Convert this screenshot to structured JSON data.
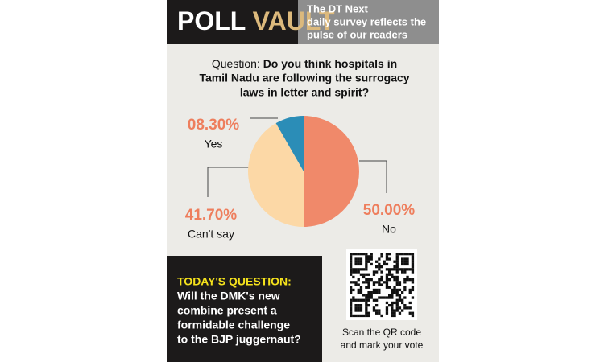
{
  "header": {
    "title_part1": "POLL",
    "title_part2": "VAULT",
    "tagline": [
      "The DT Next",
      "daily survey reflects the",
      "pulse of our readers"
    ]
  },
  "chart_data": {
    "type": "pie",
    "question_prefix": "Question:",
    "question": [
      "Do you think hospitals in",
      "Tamil Nadu are following the surrogacy",
      "laws in letter and spirit?"
    ],
    "categories": [
      "No",
      "Can't say",
      "Yes"
    ],
    "values": [
      50,
      41.7,
      8.3
    ],
    "value_labels": [
      "50.00%",
      "41.70%",
      "08.30%"
    ],
    "colors": [
      "#f0896a",
      "#fcd8a6",
      "#2b8db7"
    ]
  },
  "todays_question": {
    "label": "TODAY'S QUESTION:",
    "text": [
      "Will the DMK's new",
      "combine present a",
      "formidable challenge",
      "to the BJP juggernaut?"
    ]
  },
  "qr_caption": [
    "Scan the QR code",
    "and mark your vote"
  ]
}
